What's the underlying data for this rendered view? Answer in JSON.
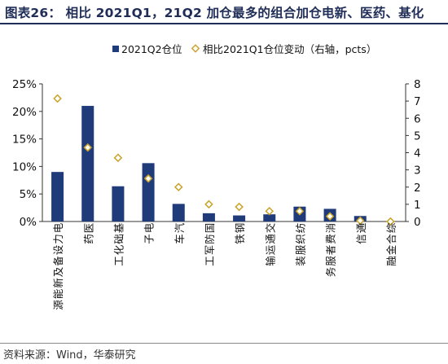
{
  "title": "图表26：  相比 2021Q1，21Q2 加仓最多的组合加仓电新、医药、基化",
  "source": "资料来源：Wind，华泰研究",
  "colors": {
    "bar": "#1f3b7a",
    "marker_stroke": "#c9a227",
    "marker_fill": "#ffffff",
    "title": "#1f2d57"
  },
  "chart_data": {
    "type": "bar",
    "categories": [
      "电力设备及新能源",
      "医药",
      "基础化工",
      "电子",
      "汽车",
      "国防军工",
      "钢铁",
      "交通运输",
      "纺织服装",
      "消费者服务",
      "通信",
      "综合金融"
    ],
    "series": [
      {
        "name": "2021Q2仓位",
        "type": "bar",
        "axis": "left",
        "values": [
          9.0,
          21.0,
          6.4,
          10.6,
          3.2,
          1.5,
          1.1,
          1.3,
          2.7,
          2.3,
          1.0,
          0.0
        ]
      },
      {
        "name": "相比2021Q1仓位变动（右轴，pcts）",
        "type": "scatter",
        "axis": "right",
        "values": [
          7.15,
          4.3,
          3.7,
          2.5,
          2.0,
          1.0,
          0.85,
          0.6,
          0.6,
          0.3,
          0.05,
          0.0
        ]
      }
    ],
    "y_left": {
      "min": 0,
      "max": 25,
      "ticks": [
        "0%",
        "5%",
        "10%",
        "15%",
        "20%",
        "25%"
      ]
    },
    "y_right": {
      "min": 0,
      "max": 8,
      "ticks": [
        "0",
        "1",
        "2",
        "3",
        "4",
        "5",
        "6",
        "7",
        "8"
      ]
    },
    "legend_position": "top",
    "grid": false
  }
}
